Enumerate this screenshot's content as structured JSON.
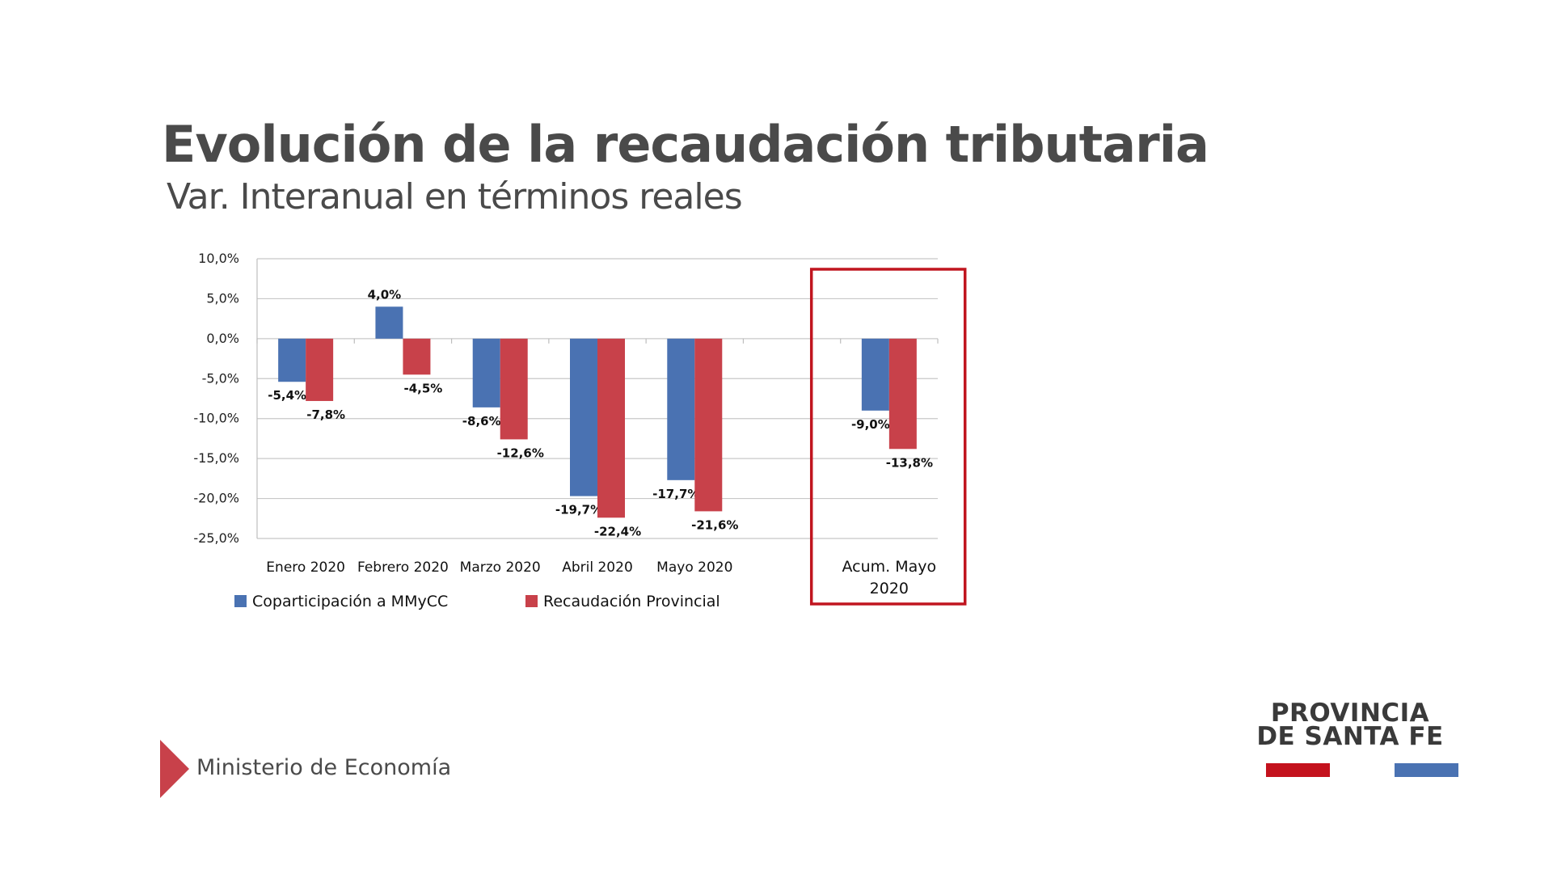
{
  "header": {
    "title": "Evolución de la recaudación tributaria",
    "subtitle": "Var. Interanual en términos reales"
  },
  "chart_data": {
    "type": "bar",
    "title": "Evolución de la recaudación tributaria",
    "subtitle": "Var. Interanual en términos reales",
    "xlabel": "",
    "ylabel": "",
    "ylim": [
      -25,
      10
    ],
    "yticks": [
      10,
      5,
      0,
      -5,
      -10,
      -15,
      -20,
      -25
    ],
    "ytick_labels": [
      "10,0%",
      "5,0%",
      "0,0%",
      "-5,0%",
      "-10,0%",
      "-15,0%",
      "-20,0%",
      "-25,0%"
    ],
    "categories": [
      "Enero 2020",
      "Febrero 2020",
      "Marzo 2020",
      "Abril 2020",
      "Mayo 2020",
      "",
      "Acum. Mayo 2020"
    ],
    "highlighted_category": "Acum. Mayo 2020",
    "grid": true,
    "legend_position": "bottom",
    "series": [
      {
        "name": "Coparticipación a MMyCC",
        "color": "#4a72b2",
        "values": [
          -5.4,
          4.0,
          -8.6,
          -19.7,
          -17.7,
          null,
          -9.0
        ],
        "labels": [
          "-5,4%",
          "4,0%",
          "-8,6%",
          "-19,7%",
          "-17,7%",
          "",
          "-9,0%"
        ]
      },
      {
        "name": "Recaudación Provincial",
        "color": "#c8414a",
        "values": [
          -7.8,
          -4.5,
          -12.6,
          -22.4,
          -21.6,
          null,
          -13.8
        ],
        "labels": [
          "-7,8%",
          "-4,5%",
          "-12,6%",
          "-22,4%",
          "-21,6%",
          "",
          "-13,8%"
        ]
      }
    ],
    "highlight_color": "#c0151f"
  },
  "footer": {
    "ministry": "Ministerio de Economía",
    "accent_color": "#c8414a"
  },
  "logo": {
    "line1": "PROVINCIA",
    "line2": "DE SANTA FE",
    "red_color": "#c4121d",
    "blue_color": "#4a72b2"
  }
}
